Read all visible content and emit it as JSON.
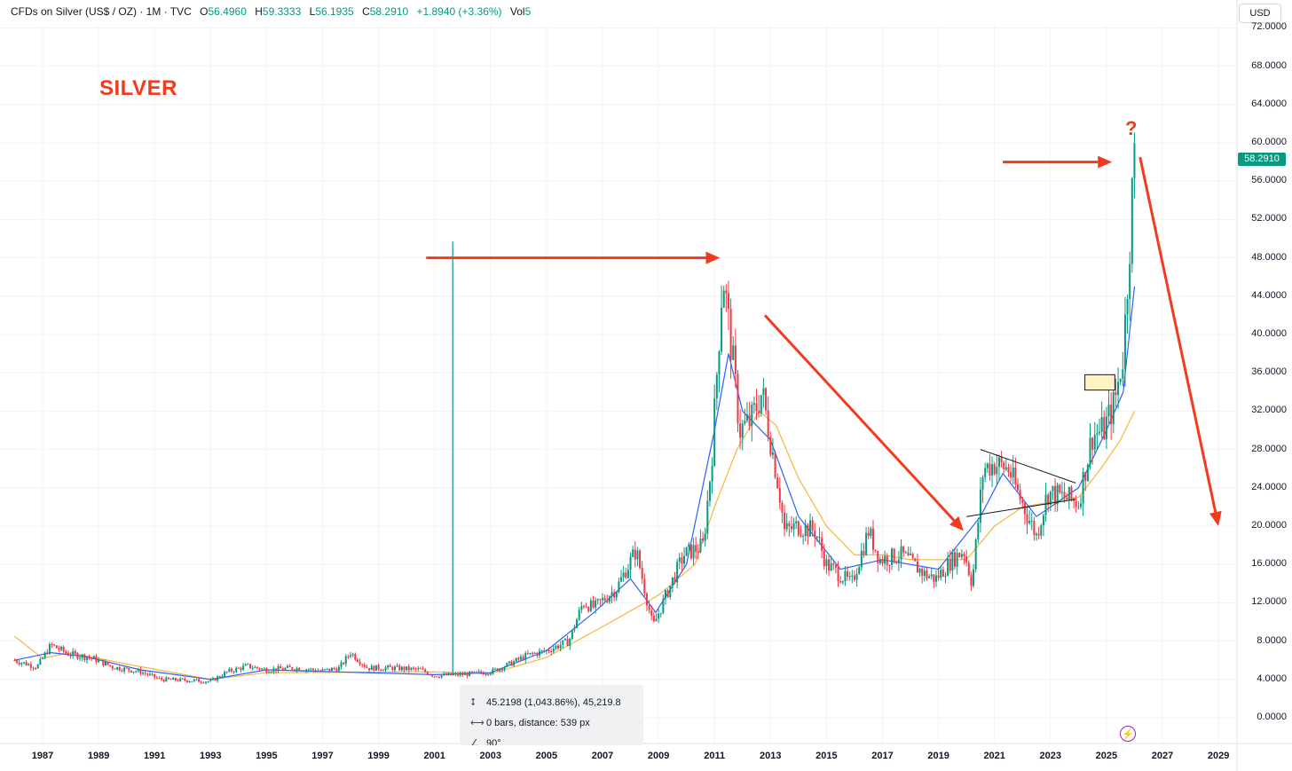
{
  "header": {
    "symbol": "CFDs on Silver (US$ / OZ) · 1M · TVC",
    "o_label": "O",
    "o_value": "56.4960",
    "h_label": "H",
    "h_value": "59.3333",
    "l_label": "L",
    "l_value": "56.1935",
    "c_label": "C",
    "c_value": "58.2910",
    "change": "+1.8940 (+3.36%)",
    "vol_label": "Vol",
    "vol_value": "5"
  },
  "currency_button": "USD",
  "last_price": "58.2910",
  "annotation_title": "SILVER",
  "annotation_question": "?",
  "measure_tool": {
    "line1": "45.2198 (1,043.86%), 45,219.8",
    "line2": "0 bars, distance: 539 px",
    "line3": "90°"
  },
  "colors": {
    "up": "#089981",
    "down": "#f23645",
    "ma_long": "#f5b63c",
    "ma_short": "#2962ff",
    "annotation": "#f23b1e"
  },
  "icons": [
    "measure-vertical-icon",
    "measure-horizontal-icon",
    "angle-icon",
    "lightning-icon"
  ],
  "chart_data": {
    "type": "candlestick",
    "timeframe": "1M",
    "y_ticks": [
      "0.0000",
      "4.0000",
      "8.0000",
      "12.0000",
      "16.0000",
      "20.0000",
      "24.0000",
      "28.0000",
      "32.0000",
      "36.0000",
      "40.0000",
      "44.0000",
      "48.0000",
      "52.0000",
      "56.0000",
      "60.0000",
      "64.0000",
      "68.0000",
      "72.0000"
    ],
    "ylim": [
      -1,
      72
    ],
    "x_ticks": [
      "1987",
      "1989",
      "1991",
      "1993",
      "1995",
      "1997",
      "1999",
      "2001",
      "2003",
      "2005",
      "2007",
      "2009",
      "2011",
      "2013",
      "2015",
      "2017",
      "2019",
      "2021",
      "2023",
      "2025",
      "2027",
      "2029"
    ],
    "xlim": [
      1986.0,
      2029.9
    ],
    "price_points": [
      [
        1986.0,
        6.0
      ],
      [
        1986.8,
        5.3
      ],
      [
        1987.3,
        7.6
      ],
      [
        1987.9,
        6.7
      ],
      [
        1988.8,
        6.2
      ],
      [
        1989.5,
        5.3
      ],
      [
        1990.5,
        4.8
      ],
      [
        1991.2,
        4.0
      ],
      [
        1992.3,
        3.9
      ],
      [
        1993.0,
        3.8
      ],
      [
        1993.6,
        4.8
      ],
      [
        1994.3,
        5.4
      ],
      [
        1995.0,
        5.0
      ],
      [
        1996.0,
        5.2
      ],
      [
        1997.0,
        4.9
      ],
      [
        1997.6,
        5.2
      ],
      [
        1998.0,
        6.8
      ],
      [
        1998.6,
        5.2
      ],
      [
        1999.5,
        5.2
      ],
      [
        2000.5,
        5.0
      ],
      [
        2001.0,
        4.4
      ],
      [
        2002.0,
        4.5
      ],
      [
        2003.0,
        4.8
      ],
      [
        2003.6,
        5.5
      ],
      [
        2004.3,
        6.5
      ],
      [
        2005.0,
        7.0
      ],
      [
        2005.8,
        8.0
      ],
      [
        2006.3,
        12.0
      ],
      [
        2006.7,
        11.5
      ],
      [
        2007.5,
        13.5
      ],
      [
        2008.2,
        17.5
      ],
      [
        2008.8,
        9.5
      ],
      [
        2009.3,
        13.0
      ],
      [
        2009.9,
        17.0
      ],
      [
        2010.6,
        18.0
      ],
      [
        2010.9,
        27.0
      ],
      [
        2011.3,
        46.5
      ],
      [
        2011.7,
        36.0
      ],
      [
        2011.9,
        30.0
      ],
      [
        2012.3,
        31.0
      ],
      [
        2012.7,
        34.0
      ],
      [
        2013.3,
        24.0
      ],
      [
        2013.5,
        19.5
      ],
      [
        2014.0,
        20.0
      ],
      [
        2014.6,
        19.5
      ],
      [
        2015.0,
        16.0
      ],
      [
        2015.9,
        14.0
      ],
      [
        2016.5,
        19.5
      ],
      [
        2016.9,
        16.5
      ],
      [
        2017.7,
        17.0
      ],
      [
        2018.5,
        15.0
      ],
      [
        2018.9,
        14.5
      ],
      [
        2019.5,
        16.5
      ],
      [
        2019.9,
        17.5
      ],
      [
        2020.2,
        14.0
      ],
      [
        2020.6,
        26.0
      ],
      [
        2021.0,
        26.5
      ],
      [
        2021.5,
        26.0
      ],
      [
        2021.9,
        23.0
      ],
      [
        2022.5,
        19.0
      ],
      [
        2022.9,
        23.5
      ],
      [
        2023.5,
        23.0
      ],
      [
        2024.0,
        22.5
      ],
      [
        2024.5,
        29.5
      ],
      [
        2024.9,
        30.0
      ],
      [
        2025.3,
        33.0
      ],
      [
        2025.6,
        38.0
      ],
      [
        2025.8,
        48.0
      ],
      [
        2025.95,
        56.5
      ],
      [
        2026.0,
        58.29
      ]
    ],
    "ma_long_points": [
      [
        1986.0,
        8.5
      ],
      [
        1987.0,
        6.2
      ],
      [
        1988.0,
        6.8
      ],
      [
        1990.0,
        5.6
      ],
      [
        1993.0,
        4.0
      ],
      [
        1995.0,
        4.7
      ],
      [
        2001.0,
        4.8
      ],
      [
        2003.0,
        4.6
      ],
      [
        2005.0,
        6.3
      ],
      [
        2007.0,
        9.5
      ],
      [
        2009.0,
        12.8
      ],
      [
        2010.3,
        16.0
      ],
      [
        2011.0,
        22.0
      ],
      [
        2011.8,
        28.0
      ],
      [
        2012.6,
        32.0
      ],
      [
        2013.2,
        30.5
      ],
      [
        2014.0,
        25.0
      ],
      [
        2015.0,
        20.0
      ],
      [
        2016.0,
        17.0
      ],
      [
        2017.0,
        17.0
      ],
      [
        2018.0,
        16.5
      ],
      [
        2019.0,
        16.5
      ],
      [
        2020.0,
        16.5
      ],
      [
        2021.0,
        20.0
      ],
      [
        2022.0,
        22.0
      ],
      [
        2023.0,
        22.5
      ],
      [
        2024.0,
        23.0
      ],
      [
        2024.8,
        26.0
      ],
      [
        2025.5,
        29.0
      ],
      [
        2026.0,
        32.0
      ]
    ],
    "ma_short_points": [
      [
        1986.0,
        6.0
      ],
      [
        1987.3,
        6.8
      ],
      [
        1988.5,
        6.4
      ],
      [
        1990.5,
        5.0
      ],
      [
        1993.0,
        4.0
      ],
      [
        1995.0,
        5.0
      ],
      [
        2001.0,
        4.5
      ],
      [
        2003.0,
        4.7
      ],
      [
        2005.0,
        7.0
      ],
      [
        2006.7,
        11.0
      ],
      [
        2008.0,
        14.5
      ],
      [
        2008.9,
        11.0
      ],
      [
        2010.0,
        16.0
      ],
      [
        2011.0,
        30.0
      ],
      [
        2011.5,
        38.0
      ],
      [
        2012.0,
        32.0
      ],
      [
        2013.0,
        29.0
      ],
      [
        2014.0,
        21.0
      ],
      [
        2015.5,
        15.5
      ],
      [
        2017.0,
        16.5
      ],
      [
        2019.0,
        15.5
      ],
      [
        2020.5,
        21.0
      ],
      [
        2021.3,
        25.5
      ],
      [
        2022.5,
        21.0
      ],
      [
        2024.0,
        24.0
      ],
      [
        2025.0,
        30.0
      ],
      [
        2025.6,
        34.0
      ],
      [
        2026.0,
        45.0
      ]
    ],
    "vertical_marker": {
      "x": 2001.65,
      "y_from": 4.5,
      "y_to": 49.7
    },
    "triangle_upper": [
      [
        2020.5,
        28.0
      ],
      [
        2023.9,
        24.5
      ]
    ],
    "triangle_lower": [
      [
        2020.0,
        21.0
      ],
      [
        2023.9,
        22.8
      ]
    ],
    "highlight_box": {
      "x_from": 2024.23,
      "x_to": 2025.3,
      "y_from": 34.2,
      "y_to": 35.8
    },
    "arrows": [
      {
        "from": [
          2000.7,
          48.0
        ],
        "to": [
          2011.2,
          48.0
        ]
      },
      {
        "from": [
          2012.8,
          42.0
        ],
        "to": [
          2019.9,
          19.5
        ]
      },
      {
        "from": [
          2021.3,
          58.0
        ],
        "to": [
          2025.2,
          58.0
        ]
      },
      {
        "from": [
          2026.2,
          58.5
        ],
        "to": [
          2029.0,
          20.0
        ]
      }
    ]
  }
}
